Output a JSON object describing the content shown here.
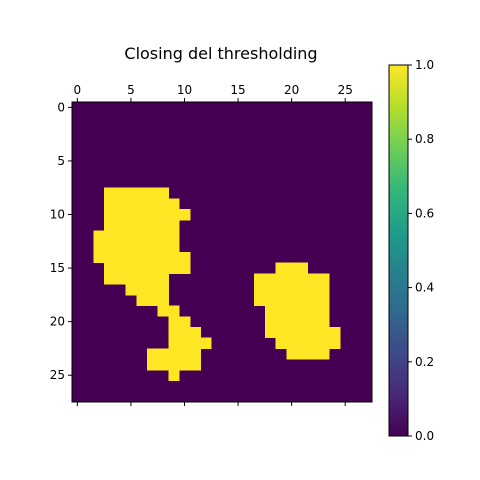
{
  "chart_data": {
    "type": "heatmap",
    "title": "Closing del thresholding",
    "xlabel": "",
    "ylabel": "",
    "shape": [
      28,
      28
    ],
    "xticks": [
      0,
      5,
      10,
      15,
      20,
      25
    ],
    "yticks": [
      0,
      5,
      10,
      15,
      20,
      25
    ],
    "x_tick_position": "top",
    "colormap": "viridis",
    "colors": {
      "low": "#440154",
      "high": "#fde725"
    },
    "vmin": 0.0,
    "vmax": 1.0,
    "colorbar_ticks": [
      "0.0",
      "0.2",
      "0.4",
      "0.6",
      "0.8",
      "1.0"
    ],
    "rows_of_value_1": [
      {
        "row": 8,
        "cols": [
          [
            3,
            8
          ]
        ]
      },
      {
        "row": 9,
        "cols": [
          [
            3,
            9
          ]
        ]
      },
      {
        "row": 10,
        "cols": [
          [
            3,
            10
          ]
        ]
      },
      {
        "row": 11,
        "cols": [
          [
            3,
            9
          ]
        ]
      },
      {
        "row": 12,
        "cols": [
          [
            2,
            9
          ]
        ]
      },
      {
        "row": 13,
        "cols": [
          [
            2,
            9
          ]
        ]
      },
      {
        "row": 14,
        "cols": [
          [
            2,
            10
          ]
        ]
      },
      {
        "row": 15,
        "cols": [
          [
            3,
            10
          ],
          [
            19,
            21
          ]
        ]
      },
      {
        "row": 16,
        "cols": [
          [
            3,
            8
          ],
          [
            17,
            23
          ]
        ]
      },
      {
        "row": 17,
        "cols": [
          [
            5,
            8
          ],
          [
            17,
            23
          ]
        ]
      },
      {
        "row": 18,
        "cols": [
          [
            6,
            8
          ],
          [
            17,
            23
          ]
        ]
      },
      {
        "row": 19,
        "cols": [
          [
            8,
            9
          ],
          [
            18,
            23
          ]
        ]
      },
      {
        "row": 20,
        "cols": [
          [
            9,
            10
          ],
          [
            18,
            23
          ]
        ]
      },
      {
        "row": 21,
        "cols": [
          [
            9,
            11
          ],
          [
            18,
            24
          ]
        ]
      },
      {
        "row": 22,
        "cols": [
          [
            9,
            12
          ],
          [
            19,
            24
          ]
        ]
      },
      {
        "row": 23,
        "cols": [
          [
            7,
            11
          ],
          [
            20,
            23
          ]
        ]
      },
      {
        "row": 24,
        "cols": [
          [
            7,
            11
          ]
        ]
      },
      {
        "row": 25,
        "cols": [
          [
            9,
            9
          ]
        ]
      }
    ]
  }
}
